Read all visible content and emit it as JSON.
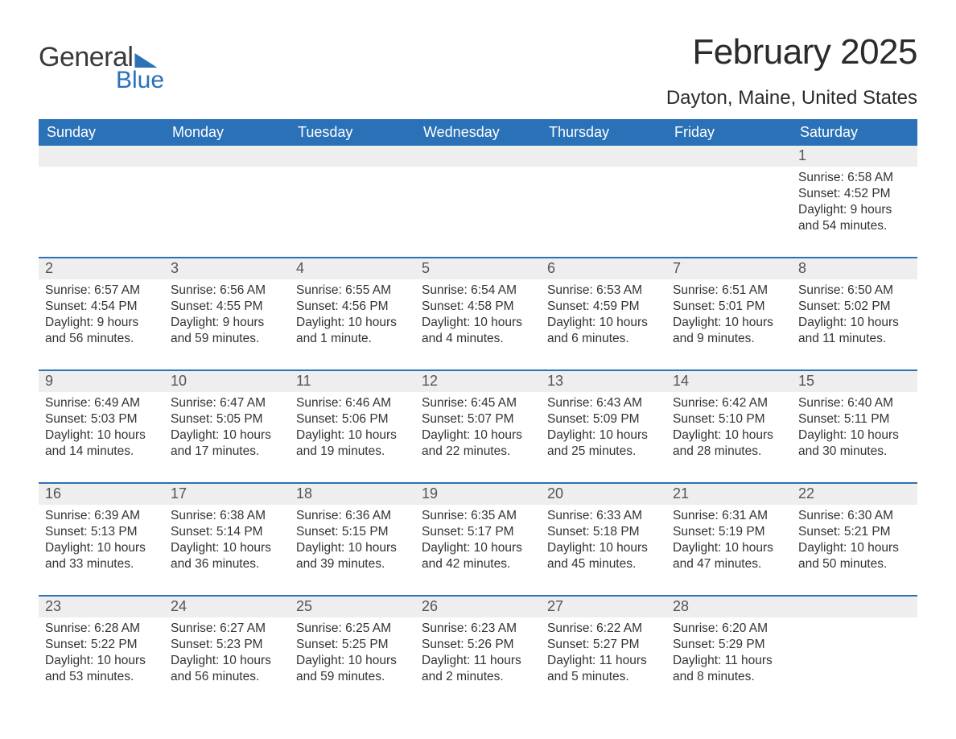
{
  "logo": {
    "general": "General",
    "blue": "Blue"
  },
  "title": "February 2025",
  "location": "Dayton, Maine, United States",
  "colors": {
    "header_bg": "#2a71b8",
    "header_text": "#ffffff",
    "day_num_bg": "#eeeeee",
    "border": "#2a71b8",
    "body_text": "#333333",
    "page_bg": "#ffffff"
  },
  "typography": {
    "title_fontsize": 44,
    "location_fontsize": 24,
    "dow_fontsize": 18,
    "body_fontsize": 15.5
  },
  "days_of_week": [
    "Sunday",
    "Monday",
    "Tuesday",
    "Wednesday",
    "Thursday",
    "Friday",
    "Saturday"
  ],
  "weeks": [
    [
      null,
      null,
      null,
      null,
      null,
      null,
      {
        "n": "1",
        "sunrise": "Sunrise: 6:58 AM",
        "sunset": "Sunset: 4:52 PM",
        "day1": "Daylight: 9 hours",
        "day2": "and 54 minutes."
      }
    ],
    [
      {
        "n": "2",
        "sunrise": "Sunrise: 6:57 AM",
        "sunset": "Sunset: 4:54 PM",
        "day1": "Daylight: 9 hours",
        "day2": "and 56 minutes."
      },
      {
        "n": "3",
        "sunrise": "Sunrise: 6:56 AM",
        "sunset": "Sunset: 4:55 PM",
        "day1": "Daylight: 9 hours",
        "day2": "and 59 minutes."
      },
      {
        "n": "4",
        "sunrise": "Sunrise: 6:55 AM",
        "sunset": "Sunset: 4:56 PM",
        "day1": "Daylight: 10 hours",
        "day2": "and 1 minute."
      },
      {
        "n": "5",
        "sunrise": "Sunrise: 6:54 AM",
        "sunset": "Sunset: 4:58 PM",
        "day1": "Daylight: 10 hours",
        "day2": "and 4 minutes."
      },
      {
        "n": "6",
        "sunrise": "Sunrise: 6:53 AM",
        "sunset": "Sunset: 4:59 PM",
        "day1": "Daylight: 10 hours",
        "day2": "and 6 minutes."
      },
      {
        "n": "7",
        "sunrise": "Sunrise: 6:51 AM",
        "sunset": "Sunset: 5:01 PM",
        "day1": "Daylight: 10 hours",
        "day2": "and 9 minutes."
      },
      {
        "n": "8",
        "sunrise": "Sunrise: 6:50 AM",
        "sunset": "Sunset: 5:02 PM",
        "day1": "Daylight: 10 hours",
        "day2": "and 11 minutes."
      }
    ],
    [
      {
        "n": "9",
        "sunrise": "Sunrise: 6:49 AM",
        "sunset": "Sunset: 5:03 PM",
        "day1": "Daylight: 10 hours",
        "day2": "and 14 minutes."
      },
      {
        "n": "10",
        "sunrise": "Sunrise: 6:47 AM",
        "sunset": "Sunset: 5:05 PM",
        "day1": "Daylight: 10 hours",
        "day2": "and 17 minutes."
      },
      {
        "n": "11",
        "sunrise": "Sunrise: 6:46 AM",
        "sunset": "Sunset: 5:06 PM",
        "day1": "Daylight: 10 hours",
        "day2": "and 19 minutes."
      },
      {
        "n": "12",
        "sunrise": "Sunrise: 6:45 AM",
        "sunset": "Sunset: 5:07 PM",
        "day1": "Daylight: 10 hours",
        "day2": "and 22 minutes."
      },
      {
        "n": "13",
        "sunrise": "Sunrise: 6:43 AM",
        "sunset": "Sunset: 5:09 PM",
        "day1": "Daylight: 10 hours",
        "day2": "and 25 minutes."
      },
      {
        "n": "14",
        "sunrise": "Sunrise: 6:42 AM",
        "sunset": "Sunset: 5:10 PM",
        "day1": "Daylight: 10 hours",
        "day2": "and 28 minutes."
      },
      {
        "n": "15",
        "sunrise": "Sunrise: 6:40 AM",
        "sunset": "Sunset: 5:11 PM",
        "day1": "Daylight: 10 hours",
        "day2": "and 30 minutes."
      }
    ],
    [
      {
        "n": "16",
        "sunrise": "Sunrise: 6:39 AM",
        "sunset": "Sunset: 5:13 PM",
        "day1": "Daylight: 10 hours",
        "day2": "and 33 minutes."
      },
      {
        "n": "17",
        "sunrise": "Sunrise: 6:38 AM",
        "sunset": "Sunset: 5:14 PM",
        "day1": "Daylight: 10 hours",
        "day2": "and 36 minutes."
      },
      {
        "n": "18",
        "sunrise": "Sunrise: 6:36 AM",
        "sunset": "Sunset: 5:15 PM",
        "day1": "Daylight: 10 hours",
        "day2": "and 39 minutes."
      },
      {
        "n": "19",
        "sunrise": "Sunrise: 6:35 AM",
        "sunset": "Sunset: 5:17 PM",
        "day1": "Daylight: 10 hours",
        "day2": "and 42 minutes."
      },
      {
        "n": "20",
        "sunrise": "Sunrise: 6:33 AM",
        "sunset": "Sunset: 5:18 PM",
        "day1": "Daylight: 10 hours",
        "day2": "and 45 minutes."
      },
      {
        "n": "21",
        "sunrise": "Sunrise: 6:31 AM",
        "sunset": "Sunset: 5:19 PM",
        "day1": "Daylight: 10 hours",
        "day2": "and 47 minutes."
      },
      {
        "n": "22",
        "sunrise": "Sunrise: 6:30 AM",
        "sunset": "Sunset: 5:21 PM",
        "day1": "Daylight: 10 hours",
        "day2": "and 50 minutes."
      }
    ],
    [
      {
        "n": "23",
        "sunrise": "Sunrise: 6:28 AM",
        "sunset": "Sunset: 5:22 PM",
        "day1": "Daylight: 10 hours",
        "day2": "and 53 minutes."
      },
      {
        "n": "24",
        "sunrise": "Sunrise: 6:27 AM",
        "sunset": "Sunset: 5:23 PM",
        "day1": "Daylight: 10 hours",
        "day2": "and 56 minutes."
      },
      {
        "n": "25",
        "sunrise": "Sunrise: 6:25 AM",
        "sunset": "Sunset: 5:25 PM",
        "day1": "Daylight: 10 hours",
        "day2": "and 59 minutes."
      },
      {
        "n": "26",
        "sunrise": "Sunrise: 6:23 AM",
        "sunset": "Sunset: 5:26 PM",
        "day1": "Daylight: 11 hours",
        "day2": "and 2 minutes."
      },
      {
        "n": "27",
        "sunrise": "Sunrise: 6:22 AM",
        "sunset": "Sunset: 5:27 PM",
        "day1": "Daylight: 11 hours",
        "day2": "and 5 minutes."
      },
      {
        "n": "28",
        "sunrise": "Sunrise: 6:20 AM",
        "sunset": "Sunset: 5:29 PM",
        "day1": "Daylight: 11 hours",
        "day2": "and 8 minutes."
      },
      null
    ]
  ]
}
